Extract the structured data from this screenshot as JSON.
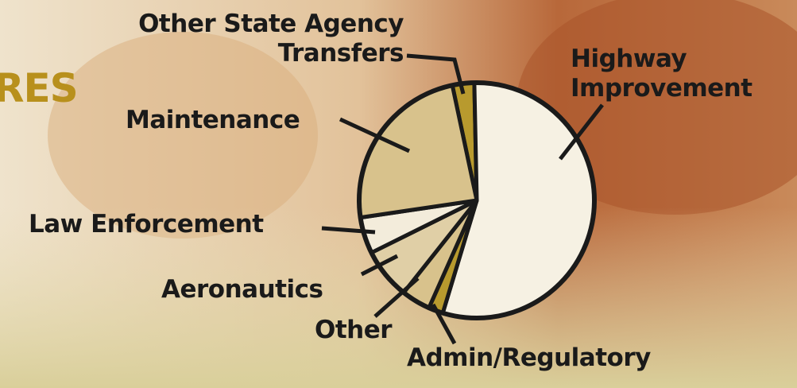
{
  "chart_data": {
    "type": "pie",
    "title": "RES",
    "categories": [
      "Other State Agency Transfers",
      "Highway Improvement",
      "Admin/Regulatory",
      "Other",
      "Aeronautics",
      "Law Enforcement",
      "Maintenance"
    ],
    "values": [
      3,
      55,
      2,
      4,
      7,
      5,
      24
    ],
    "colors": [
      "#b89a2e",
      "#f6f1e3",
      "#b89a2e",
      "#d8c28c",
      "#e0cfa6",
      "#f3ecdb",
      "#d8c28c"
    ]
  }
}
